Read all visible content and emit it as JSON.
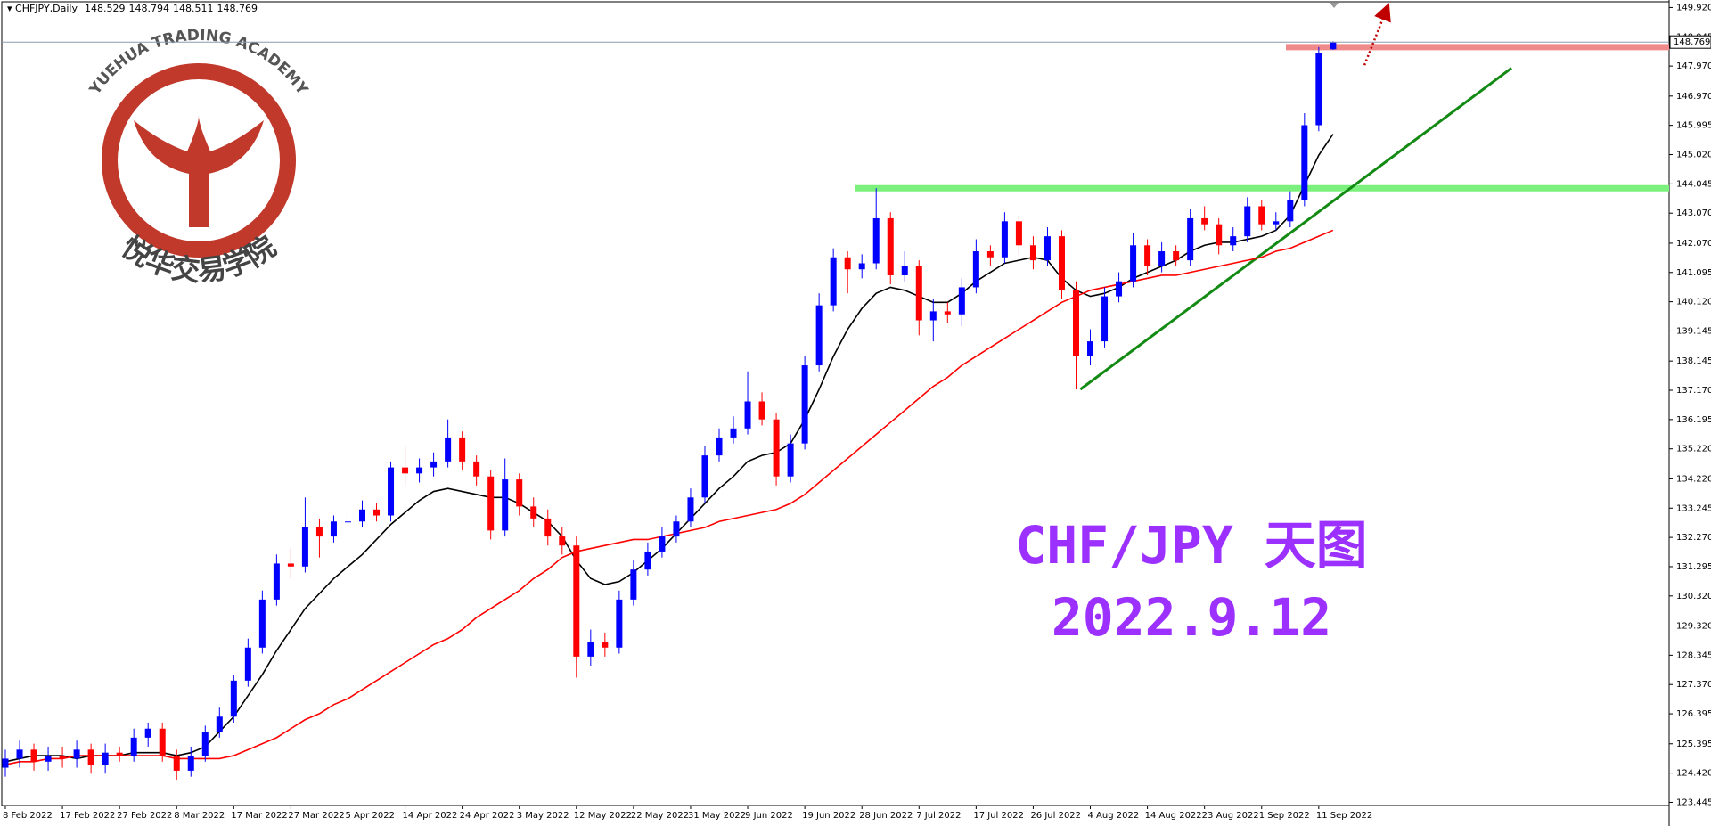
{
  "chart_data": {
    "type": "candlestick",
    "title": "CHFJPY,Daily",
    "categories": [
      "8 Feb 2022",
      null,
      null,
      null,
      "17 Feb 2022",
      null,
      null,
      null,
      "27 Feb 2022",
      null,
      null,
      null,
      "8 Mar 2022",
      null,
      null,
      null,
      "17 Mar 2022",
      null,
      null,
      null,
      "27 Mar 2022",
      null,
      null,
      null,
      "5 Apr 2022",
      null,
      null,
      null,
      "14 Apr 2022",
      null,
      null,
      null,
      "24 Apr 2022",
      null,
      null,
      null,
      "3 May 2022",
      null,
      null,
      null,
      "12 May 2022",
      null,
      null,
      null,
      "22 May 2022",
      null,
      null,
      null,
      "31 May 2022",
      null,
      null,
      null,
      "9 Jun 2022",
      null,
      null,
      null,
      "19 Jun 2022",
      null,
      null,
      null,
      "28 Jun 2022",
      null,
      null,
      null,
      "7 Jul 2022",
      null,
      null,
      null,
      "17 Jul 2022",
      null,
      null,
      null,
      "26 Jul 2022",
      null,
      null,
      null,
      "4 Aug 2022",
      null,
      null,
      null,
      "14 Aug 2022",
      null,
      null,
      null,
      "23 Aug 2022",
      null,
      null,
      null,
      "1 Sep 2022",
      null,
      null,
      null,
      "11 Sep 2022",
      null
    ],
    "open": [
      124.6,
      124.9,
      125.2,
      124.8,
      125.0,
      124.9,
      125.2,
      124.7,
      125.1,
      125.0,
      125.6,
      125.9,
      125.0,
      124.5,
      125.0,
      125.8,
      126.3,
      127.5,
      128.6,
      130.2,
      131.4,
      131.3,
      132.6,
      132.3,
      132.8,
      132.8,
      133.2,
      133.0,
      134.6,
      134.4,
      134.6,
      134.8,
      135.6,
      134.8,
      134.3,
      132.5,
      134.2,
      133.3,
      132.9,
      132.3,
      132.0,
      128.3,
      128.8,
      128.6,
      130.2,
      131.2,
      131.8,
      132.3,
      132.8,
      133.6,
      135.0,
      135.6,
      135.9,
      136.8,
      136.2,
      134.3,
      135.4,
      138.0,
      140.0,
      141.6,
      141.2,
      141.4,
      142.9,
      141.0,
      141.3,
      139.5,
      139.8,
      139.7,
      140.6,
      141.8,
      141.6,
      142.8,
      142.0,
      141.5,
      142.3,
      140.5,
      138.3,
      138.8,
      140.3,
      140.8,
      142.0,
      141.3,
      141.8,
      141.5,
      142.9,
      142.7,
      142.0,
      142.3,
      143.3,
      142.7,
      142.8,
      143.5,
      146.0,
      148.529
    ],
    "high": [
      125.2,
      125.5,
      125.4,
      125.3,
      125.3,
      125.5,
      125.4,
      125.4,
      125.3,
      125.9,
      126.1,
      126.1,
      125.2,
      125.3,
      126.0,
      126.6,
      127.7,
      128.9,
      130.5,
      131.7,
      131.9,
      133.6,
      132.9,
      133.0,
      133.2,
      133.5,
      133.4,
      134.8,
      135.3,
      134.9,
      135.1,
      136.2,
      135.8,
      135.0,
      134.5,
      134.9,
      134.4,
      133.6,
      133.2,
      132.6,
      132.3,
      129.2,
      129.1,
      130.5,
      131.5,
      132.1,
      132.6,
      133.0,
      133.9,
      135.3,
      135.9,
      136.3,
      137.8,
      137.1,
      136.4,
      135.7,
      138.3,
      140.4,
      141.9,
      141.8,
      141.7,
      143.9,
      143.1,
      141.8,
      141.5,
      140.2,
      140.1,
      140.9,
      142.2,
      142.0,
      143.1,
      143.0,
      142.3,
      142.6,
      142.5,
      140.8,
      139.2,
      140.6,
      141.1,
      142.4,
      142.2,
      142.1,
      142.0,
      143.2,
      143.3,
      142.9,
      142.6,
      143.6,
      143.5,
      143.1,
      143.8,
      146.4,
      148.6,
      148.794
    ],
    "low": [
      124.3,
      124.6,
      124.5,
      124.5,
      124.6,
      124.6,
      124.4,
      124.4,
      124.8,
      124.8,
      125.3,
      124.8,
      124.2,
      124.3,
      124.8,
      125.6,
      126.1,
      127.3,
      128.4,
      130.0,
      130.9,
      131.1,
      131.6,
      132.1,
      132.5,
      132.6,
      132.8,
      132.8,
      134.0,
      134.1,
      134.3,
      134.6,
      134.5,
      134.0,
      132.2,
      132.3,
      133.0,
      132.6,
      132.0,
      131.7,
      127.6,
      128.0,
      128.3,
      128.4,
      130.0,
      131.0,
      131.6,
      132.1,
      132.6,
      133.4,
      134.8,
      135.4,
      135.7,
      136.0,
      134.0,
      134.1,
      135.2,
      137.8,
      139.8,
      140.4,
      140.9,
      141.2,
      140.7,
      140.8,
      139.0,
      138.8,
      139.4,
      139.3,
      140.4,
      141.3,
      141.4,
      141.7,
      141.2,
      141.3,
      140.2,
      137.2,
      138.0,
      138.6,
      140.1,
      140.6,
      141.0,
      141.1,
      141.3,
      141.3,
      142.5,
      141.7,
      141.8,
      142.1,
      142.5,
      142.5,
      142.6,
      143.3,
      145.8,
      148.511
    ],
    "close": [
      124.9,
      125.2,
      124.8,
      125.0,
      124.9,
      125.2,
      124.7,
      125.1,
      125.0,
      125.6,
      125.9,
      125.0,
      124.5,
      125.0,
      125.8,
      126.3,
      127.5,
      128.6,
      130.2,
      131.4,
      131.3,
      132.6,
      132.3,
      132.8,
      132.8,
      133.2,
      133.0,
      134.6,
      134.4,
      134.6,
      134.8,
      135.6,
      134.8,
      134.3,
      132.5,
      134.2,
      133.3,
      132.9,
      132.3,
      132.0,
      128.3,
      128.8,
      128.6,
      130.2,
      131.2,
      131.8,
      132.3,
      132.8,
      133.6,
      135.0,
      135.6,
      135.9,
      136.8,
      136.2,
      134.3,
      135.4,
      138.0,
      140.0,
      141.6,
      141.2,
      141.4,
      142.9,
      141.0,
      141.3,
      139.5,
      139.8,
      139.7,
      140.6,
      141.8,
      141.6,
      142.8,
      142.0,
      141.5,
      142.3,
      140.5,
      138.3,
      138.8,
      140.3,
      140.8,
      142.0,
      141.3,
      141.8,
      141.5,
      142.9,
      142.7,
      142.0,
      142.3,
      143.3,
      142.7,
      142.8,
      143.5,
      146.0,
      148.4,
      148.769
    ],
    "up_color": "#0000ff",
    "down_color": "#ff0000",
    "moving_averages": [
      {
        "color": "#000000",
        "values": [
          124.8,
          124.9,
          125.0,
          125.0,
          125.0,
          124.9,
          125.0,
          125.0,
          125.0,
          125.1,
          125.1,
          125.1,
          125.0,
          125.1,
          125.3,
          125.8,
          126.3,
          127.0,
          127.7,
          128.5,
          129.2,
          129.9,
          130.4,
          130.9,
          131.3,
          131.7,
          132.2,
          132.7,
          133.1,
          133.5,
          133.8,
          133.9,
          133.8,
          133.7,
          133.6,
          133.6,
          133.4,
          133.1,
          132.8,
          132.3,
          131.5,
          130.9,
          130.7,
          130.8,
          131.1,
          131.5,
          131.9,
          132.4,
          132.9,
          133.4,
          133.9,
          134.3,
          134.8,
          135.0,
          135.1,
          135.4,
          136.2,
          137.2,
          138.3,
          139.2,
          139.9,
          140.4,
          140.6,
          140.5,
          140.3,
          140.1,
          140.1,
          140.4,
          140.8,
          141.1,
          141.4,
          141.5,
          141.6,
          141.5,
          140.9,
          140.5,
          140.3,
          140.4,
          140.6,
          140.9,
          141.1,
          141.3,
          141.5,
          141.8,
          142.0,
          142.1,
          142.1,
          142.2,
          142.3,
          142.5,
          143.0,
          144.0,
          145.0,
          145.7
        ]
      },
      {
        "color": "#ff0000",
        "values": [
          124.7,
          124.8,
          124.8,
          124.9,
          124.9,
          125.0,
          125.0,
          125.0,
          125.0,
          125.0,
          125.0,
          125.0,
          124.9,
          124.9,
          124.9,
          124.9,
          125.0,
          125.2,
          125.4,
          125.6,
          125.9,
          126.2,
          126.4,
          126.7,
          126.9,
          127.2,
          127.5,
          127.8,
          128.1,
          128.4,
          128.7,
          128.9,
          129.2,
          129.6,
          129.9,
          130.2,
          130.5,
          130.9,
          131.2,
          131.6,
          131.8,
          131.9,
          132.0,
          132.1,
          132.2,
          132.2,
          132.3,
          132.4,
          132.5,
          132.6,
          132.8,
          132.9,
          133.0,
          133.1,
          133.2,
          133.4,
          133.7,
          134.1,
          134.5,
          134.9,
          135.3,
          135.7,
          136.1,
          136.5,
          136.9,
          137.3,
          137.6,
          138.0,
          138.3,
          138.6,
          138.9,
          139.2,
          139.5,
          139.8,
          140.1,
          140.3,
          140.5,
          140.6,
          140.7,
          140.8,
          140.9,
          141.0,
          141.0,
          141.1,
          141.2,
          141.3,
          141.4,
          141.5,
          141.6,
          141.8,
          141.9,
          142.1,
          142.3,
          142.5
        ]
      }
    ],
    "ylim": [
      123.34,
      150.17
    ],
    "yticks": [
      {
        "value": 149.92,
        "label": "149.920"
      },
      {
        "value": 148.945,
        "label": "148.945"
      },
      {
        "value": 147.97,
        "label": "147.970"
      },
      {
        "value": 146.97,
        "label": "146.970"
      },
      {
        "value": 145.995,
        "label": "145.995"
      },
      {
        "value": 145.02,
        "label": "145.020"
      },
      {
        "value": 144.045,
        "label": "144.045"
      },
      {
        "value": 143.07,
        "label": "143.070"
      },
      {
        "value": 142.07,
        "label": "142.070"
      },
      {
        "value": 141.095,
        "label": "141.095"
      },
      {
        "value": 140.12,
        "label": "140.120"
      },
      {
        "value": 139.145,
        "label": "139.145"
      },
      {
        "value": 138.145,
        "label": "138.145"
      },
      {
        "value": 137.17,
        "label": "137.170"
      },
      {
        "value": 136.195,
        "label": "136.195"
      },
      {
        "value": 135.22,
        "label": "135.220"
      },
      {
        "value": 134.22,
        "label": "134.220"
      },
      {
        "value": 133.245,
        "label": "133.245"
      },
      {
        "value": 132.27,
        "label": "132.270"
      },
      {
        "value": 131.295,
        "label": "131.295"
      },
      {
        "value": 130.32,
        "label": "130.320"
      },
      {
        "value": 129.32,
        "label": "129.320"
      },
      {
        "value": 128.345,
        "label": "128.345"
      },
      {
        "value": 127.37,
        "label": "127.370"
      },
      {
        "value": 126.395,
        "label": "126.395"
      },
      {
        "value": 125.395,
        "label": "125.395"
      },
      {
        "value": 124.42,
        "label": "124.420"
      },
      {
        "value": 123.445,
        "label": "123.445"
      }
    ],
    "drawings": [
      {
        "kind": "horizontal",
        "y": 143.9,
        "x_start": 59.5,
        "color": "#7cf07c"
      },
      {
        "kind": "horizontal",
        "y": 148.6,
        "x_start": 89.7,
        "color": "#f08a8a"
      },
      {
        "kind": "trend",
        "x": [
          75.3,
          105.5
        ],
        "y": [
          137.2,
          147.9
        ],
        "color": "#138a13"
      },
      {
        "kind": "arrow",
        "x": [
          95.2,
          96.7
        ],
        "y": [
          148.0,
          149.8
        ],
        "color": "#c00000"
      }
    ],
    "annotations": [
      "CHF/JPY 天图",
      "2022.9.12"
    ],
    "annotation_color": "#9b30ff"
  },
  "logo": {
    "arc_text": "YUEHUA TRADING ACADEMY",
    "name": "悦华交易学院"
  }
}
